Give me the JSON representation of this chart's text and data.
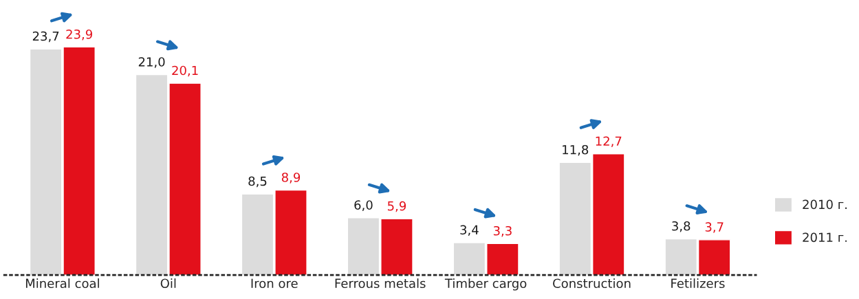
{
  "chart_data": {
    "type": "bar",
    "categories": [
      "Mineral coal",
      "Oil",
      "Iron ore",
      "Ferrous metals",
      "Timber cargo",
      "Construction",
      "Fetilizers"
    ],
    "series": [
      {
        "name": "2010 г.",
        "color": "#dcdcdc",
        "values": [
          23.7,
          21.0,
          8.5,
          6.0,
          3.4,
          11.8,
          3.8
        ],
        "value_labels": [
          "23,7",
          "21,0",
          "8,5",
          "6,0",
          "3,4",
          "11,8",
          "3,8"
        ]
      },
      {
        "name": "2011 г.",
        "color": "#e3101b",
        "values": [
          23.9,
          20.1,
          8.9,
          5.9,
          3.3,
          12.7,
          3.7
        ],
        "value_labels": [
          "23,9",
          "20,1",
          "8,9",
          "5,9",
          "3,3",
          "12,7",
          "3,7"
        ]
      }
    ],
    "tick_labels": "x",
    "legend": "right",
    "grid": false
  }
}
